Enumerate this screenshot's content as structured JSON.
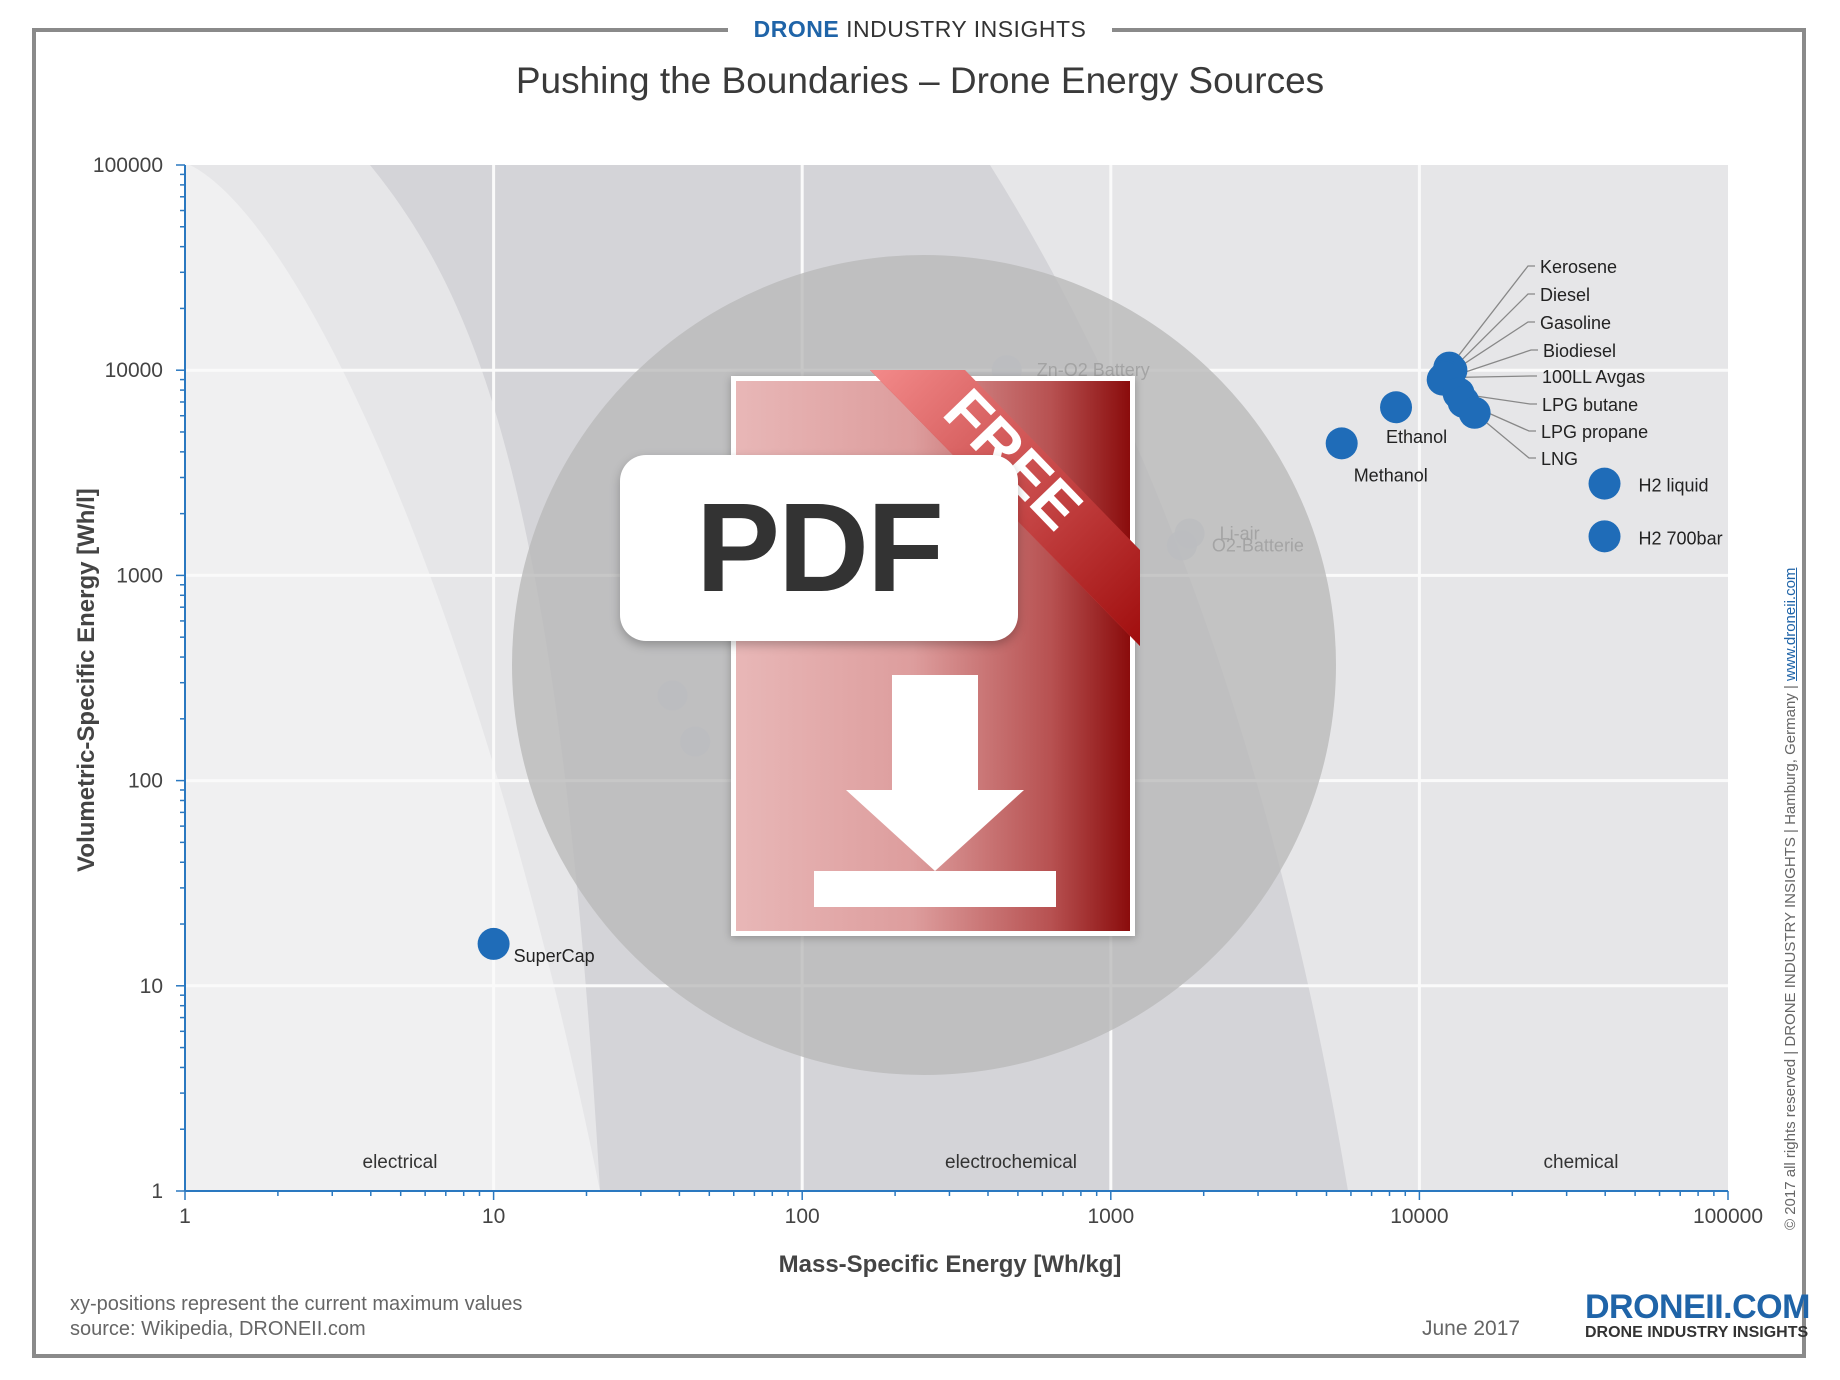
{
  "header": {
    "brand_part1": "DRONE",
    "brand_part2": " INDUSTRY ",
    "brand_part3": "INSIGHTS"
  },
  "chart_data": {
    "type": "scatter",
    "title": "Pushing the Boundaries – Drone Energy Sources",
    "xlabel": "Mass-Specific Energy [Wh/kg]",
    "ylabel": "Volumetric-Specific Energy [Wh/l]",
    "x_scale": "log",
    "y_scale": "log",
    "xlim": [
      1,
      100000
    ],
    "ylim": [
      1,
      100000
    ],
    "x_ticks": [
      "1",
      "10",
      "100",
      "1000",
      "10000",
      "100000"
    ],
    "y_ticks": [
      "1",
      "10",
      "100",
      "1000",
      "10000",
      "100000"
    ],
    "grid": true,
    "regions": [
      "electrical",
      "electrochemical",
      "chemical"
    ],
    "points": [
      {
        "label": "SuperCap",
        "x": 10,
        "y": 16
      },
      {
        "label": "Methanol",
        "x": 5600,
        "y": 4400
      },
      {
        "label": "Ethanol",
        "x": 8400,
        "y": 6600
      },
      {
        "label": "Kerosene",
        "x": 12500,
        "y": 10300
      },
      {
        "label": "Diesel",
        "x": 12700,
        "y": 10000
      },
      {
        "label": "Gasoline",
        "x": 12200,
        "y": 9400
      },
      {
        "label": "Biodiesel",
        "x": 11900,
        "y": 9000
      },
      {
        "label": "100LL Avgas",
        "x": 12100,
        "y": 9200
      },
      {
        "label": "LPG butane",
        "x": 13400,
        "y": 7700
      },
      {
        "label": "LPG propane",
        "x": 13900,
        "y": 7000
      },
      {
        "label": "LNG",
        "x": 15100,
        "y": 6200
      },
      {
        "label": "H2 liquid",
        "x": 39800,
        "y": 2800
      },
      {
        "label": "H2 700bar",
        "x": 39800,
        "y": 1550
      }
    ],
    "faded_points": [
      {
        "label": "Zn-O2 Battery",
        "x": 460,
        "y": 10000
      },
      {
        "label": "Li-air",
        "x": 1800,
        "y": 1600
      },
      {
        "label": "O2-Batterie",
        "x": 1700,
        "y": 1400
      },
      {
        "label": "",
        "x": 38,
        "y": 260
      },
      {
        "label": "",
        "x": 45,
        "y": 155
      }
    ]
  },
  "footnote": {
    "line1": "xy-positions represent the current maximum values",
    "line2": "source: Wikipedia, DRONEII.com"
  },
  "date": "June 2017",
  "logo": {
    "main": "DRONEII.COM",
    "sub": "DRONE INDUSTRY INSIGHTS"
  },
  "copyright": {
    "text": "© 2017 all rights reserved | DRONE INDUSTRY INSIGHTS | Hamburg, Germany | ",
    "link": "www.droneii.com"
  },
  "overlay": {
    "badge": "PDF",
    "ribbon": "FREE"
  },
  "colors": {
    "point": "#1f6cb8",
    "axis": "#2a78c0",
    "brand": "#1f64a8"
  }
}
